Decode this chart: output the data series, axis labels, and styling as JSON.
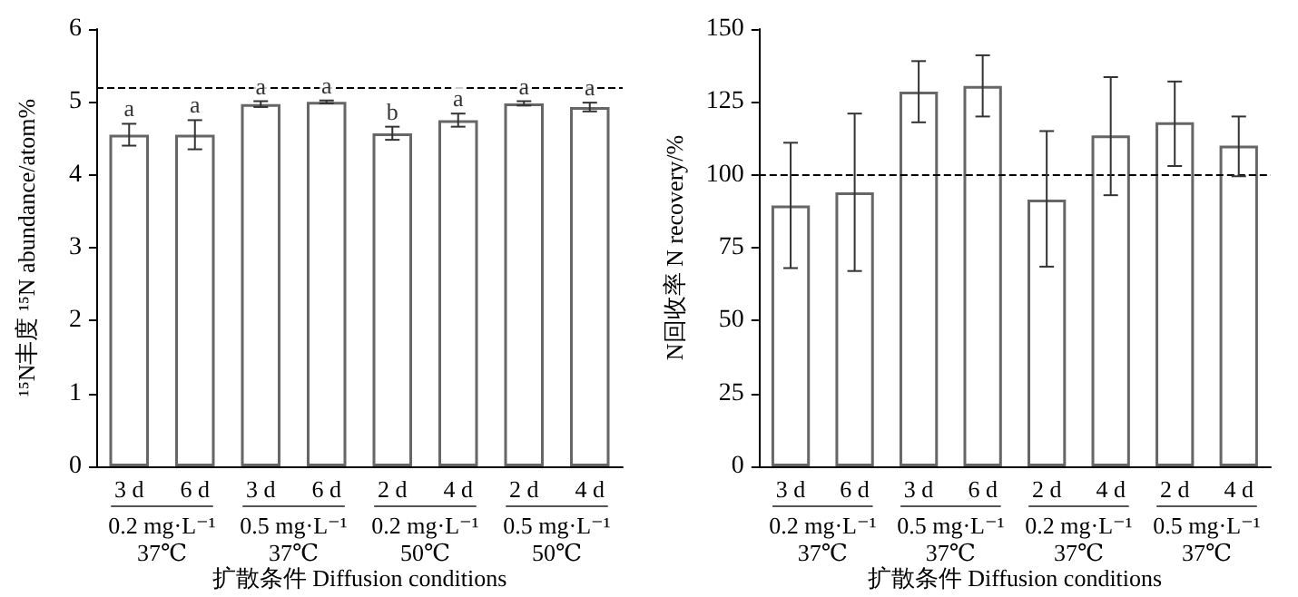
{
  "chart_data": [
    {
      "type": "bar",
      "xlabel": "扩散条件 Diffusion conditions",
      "ylabel": "¹⁵N丰度 ¹⁵N abundance/atom%",
      "categories": [
        "3 d",
        "6 d",
        "3 d",
        "6 d",
        "2 d",
        "4 d",
        "2 d",
        "4 d"
      ],
      "values": [
        4.55,
        4.55,
        4.97,
        5.0,
        4.57,
        4.75,
        4.98,
        4.93
      ],
      "errors": [
        0.15,
        0.2,
        0.04,
        0.02,
        0.09,
        0.09,
        0.03,
        0.06
      ],
      "value_labels": [
        "a",
        "a",
        "a",
        "a",
        "b",
        "a",
        "a",
        "a"
      ],
      "color": "#ffffff",
      "ylim": [
        0,
        6
      ],
      "yticks": [
        0,
        1,
        2,
        3,
        4,
        5,
        6
      ],
      "ref_lines": [
        {
          "axis": "y",
          "value": 5.2,
          "line_style": "dashed",
          "color": "#000000"
        }
      ],
      "annotations": [
        "0.2 mg·L⁻¹\n37℃",
        "0.5 mg·L⁻¹\n37℃",
        "0.2 mg·L⁻¹\n50℃",
        "0.5 mg·L⁻¹\n50℃"
      ]
    },
    {
      "type": "bar",
      "xlabel": "扩散条件 Diffusion conditions",
      "ylabel": "N回收率 N recovery/%",
      "categories": [
        "3 d",
        "6 d",
        "3 d",
        "6 d",
        "2 d",
        "4 d",
        "2 d",
        "4 d"
      ],
      "values": [
        89.5,
        94,
        128.5,
        130.5,
        91.5,
        113.5,
        118,
        110
      ],
      "errors": [
        [
          68,
          111
        ],
        [
          67,
          121
        ],
        [
          118,
          139
        ],
        [
          120,
          141
        ],
        [
          68.5,
          115
        ],
        [
          93,
          133.5
        ],
        [
          103,
          132
        ],
        [
          99.5,
          120
        ]
      ],
      "color": "#ffffff",
      "ylim": [
        0,
        150
      ],
      "yticks": [
        0,
        25,
        50,
        75,
        100,
        125,
        150
      ],
      "ref_lines": [
        {
          "axis": "y",
          "value": 100,
          "line_style": "dashed",
          "color": "#000000"
        }
      ],
      "annotations": [
        "0.2 mg·L⁻¹\n37℃",
        "0.5 mg·L⁻¹\n37℃",
        "0.2 mg·L⁻¹\n37℃",
        "0.5 mg·L⁻¹\n37℃"
      ]
    }
  ]
}
